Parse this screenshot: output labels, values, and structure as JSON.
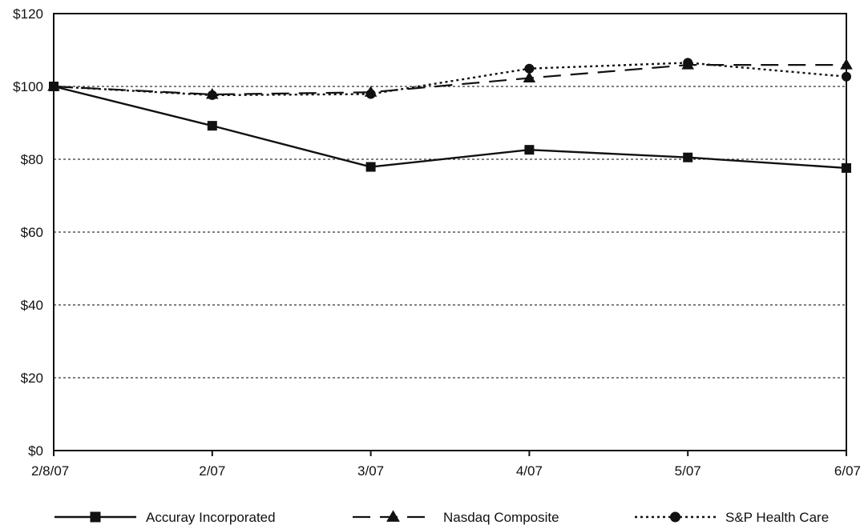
{
  "chart_data": {
    "type": "line",
    "title": "",
    "xlabel": "",
    "ylabel": "",
    "categories": [
      "2/8/07",
      "2/07",
      "3/07",
      "4/07",
      "5/07",
      "6/07"
    ],
    "ylim": [
      0,
      120
    ],
    "y_ticks": [
      0,
      20,
      40,
      60,
      80,
      100,
      120
    ],
    "y_tick_labels": [
      "$0",
      "$20",
      "$40",
      "$60",
      "$80",
      "$100",
      "$120"
    ],
    "grid": "horizontal dotted",
    "legend_position": "bottom",
    "series": [
      {
        "name": "Accuray Incorporated",
        "values": [
          100,
          89.2,
          77.9,
          82.6,
          80.5,
          77.6
        ],
        "marker": "square",
        "line": "solid"
      },
      {
        "name": "Nasdaq Composite",
        "values": [
          100,
          97.8,
          98.4,
          102.3,
          105.9,
          105.9
        ],
        "marker": "triangle",
        "line": "dashed"
      },
      {
        "name": "S&P Health Care",
        "values": [
          100,
          97.6,
          97.9,
          104.9,
          106.5,
          102.7
        ],
        "marker": "circle",
        "line": "dotted"
      }
    ]
  }
}
